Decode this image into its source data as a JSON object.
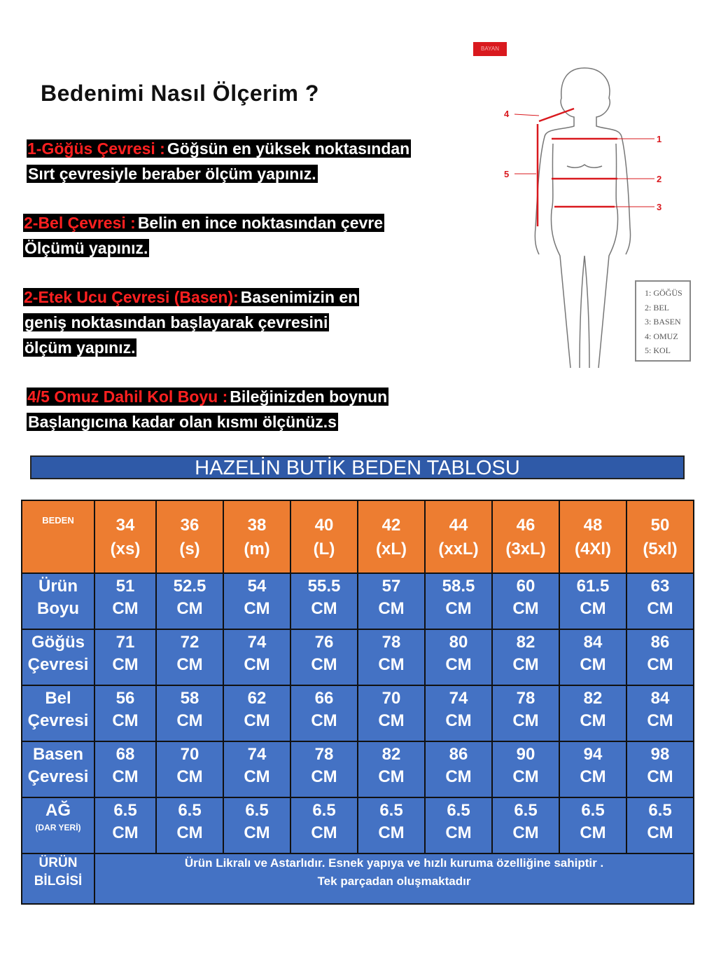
{
  "heading": "Bedenimi Nasıl Ölçerim ?",
  "instructions": [
    {
      "label": "1-Göğüs Çevresi :",
      "lines": [
        "Göğsün en yüksek noktasından",
        "Sırt çevresiyle beraber ölçüm yapınız."
      ]
    },
    {
      "label": "2-Bel Çevresi :",
      "lines": [
        "Belin en ince noktasından çevre",
        "Ölçümü yapınız."
      ]
    },
    {
      "label": "2-Etek Ucu Çevresi (Basen):",
      "lines": [
        "Basenimizin en",
        "geniş noktasından başlayarak çevresini",
        "ölçüm yapınız."
      ]
    },
    {
      "label": "4/5 Omuz Dahil Kol Boyu :",
      "lines": [
        "Bileğinizden boynun",
        "Başlangıcına kadar olan kısmı ölçünüz.s"
      ]
    }
  ],
  "figure": {
    "badge": "BAYAN",
    "markers": [
      "1",
      "2",
      "3",
      "4",
      "5"
    ],
    "legend": [
      "1: GÖĞÜS",
      "2: BEL",
      "3: BASEN",
      "4: OMUZ",
      "5: KOL"
    ],
    "line_color": "#d9191e"
  },
  "table": {
    "title": "HAZELİN BUTİK BEDEN TABLOSU",
    "header_color": "#ED7D31",
    "body_color": "#4472C4",
    "corner_label": "BEDEN",
    "sizes": [
      {
        "num": "34",
        "code": "(xs)"
      },
      {
        "num": "36",
        "code": "(s)"
      },
      {
        "num": "38",
        "code": "(m)"
      },
      {
        "num": "40",
        "code": "(L)"
      },
      {
        "num": "42",
        "code": "(xL)"
      },
      {
        "num": "44",
        "code": "(xxL)"
      },
      {
        "num": "46",
        "code": "(3xL)"
      },
      {
        "num": "48",
        "code": "(4Xl)"
      },
      {
        "num": "50",
        "code": "(5xl)"
      }
    ],
    "unit": "CM",
    "rows": [
      {
        "label1": "Ürün",
        "label2": "Boyu",
        "values": [
          "51",
          "52.5",
          "54",
          "55.5",
          "57",
          "58.5",
          "60",
          "61.5",
          "63"
        ]
      },
      {
        "label1": "Göğüs",
        "label2": "Çevresi",
        "values": [
          "71",
          "72",
          "74",
          "76",
          "78",
          "80",
          "82",
          "84",
          "86"
        ]
      },
      {
        "label1": "Bel",
        "label2": "Çevresi",
        "values": [
          "56",
          "58",
          "62",
          "66",
          "70",
          "74",
          "78",
          "82",
          "84"
        ]
      },
      {
        "label1": "Basen",
        "label2": "Çevresi",
        "values": [
          "68",
          "70",
          "74",
          "78",
          "82",
          "86",
          "90",
          "94",
          "98"
        ]
      },
      {
        "label1": "AĞ",
        "label2": "(DAR YERİ)",
        "values": [
          "6.5",
          "6.5",
          "6.5",
          "6.5",
          "6.5",
          "6.5",
          "6.5",
          "6.5",
          "6.5"
        ]
      }
    ],
    "info": {
      "label1": "ÜRÜN",
      "label2": "BİLGİSİ",
      "line1": "Ürün Likralı ve Astarlıdır. Esnek yapıya ve hızlı kuruma özelliğine sahiptir .",
      "line2": "Tek parçadan oluşmaktadır"
    }
  }
}
